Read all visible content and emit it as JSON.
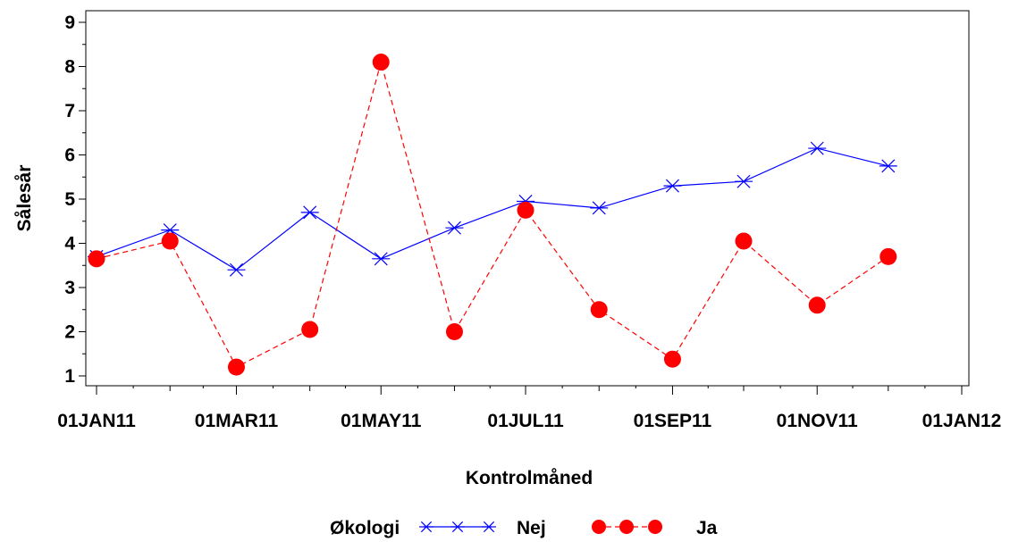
{
  "chart_data": {
    "type": "line",
    "xlabel": "Kontrolmåned",
    "ylabel": "Sålesår",
    "x_axis": {
      "type": "date",
      "range": [
        "2011-01-01",
        "2012-01-01"
      ],
      "major_ticks": [
        {
          "date": "2011-01-01",
          "label": "01JAN11"
        },
        {
          "date": "2011-03-01",
          "label": "01MAR11"
        },
        {
          "date": "2011-05-01",
          "label": "01MAY11"
        },
        {
          "date": "2011-07-01",
          "label": "01JUL11"
        },
        {
          "date": "2011-09-01",
          "label": "01SEP11"
        },
        {
          "date": "2011-11-01",
          "label": "01NOV11"
        },
        {
          "date": "2012-01-01",
          "label": "01JAN12"
        }
      ],
      "minor_ticks": [
        "2011-02-01",
        "2011-04-01",
        "2011-06-01",
        "2011-08-01",
        "2011-10-01",
        "2011-12-01"
      ]
    },
    "y_axis": {
      "range": [
        1,
        9
      ],
      "ticks": [
        1,
        2,
        3,
        4,
        5,
        6,
        7,
        8,
        9
      ]
    },
    "x": [
      "2011-01-01",
      "2011-02-01",
      "2011-03-01",
      "2011-04-01",
      "2011-05-01",
      "2011-06-01",
      "2011-07-01",
      "2011-08-01",
      "2011-09-01",
      "2011-10-01",
      "2011-11-01",
      "2011-12-01"
    ],
    "series": [
      {
        "name": "Nej",
        "color": "#0000ff",
        "marker": "asterisk",
        "line_style": "solid",
        "values": [
          3.7,
          4.3,
          3.4,
          4.7,
          3.65,
          4.35,
          4.95,
          4.8,
          5.3,
          5.4,
          6.15,
          5.75
        ]
      },
      {
        "name": "Ja",
        "color": "#ff0000",
        "marker": "circle",
        "line_style": "dashed",
        "values": [
          3.65,
          4.05,
          1.2,
          2.05,
          8.1,
          2.0,
          4.75,
          2.5,
          1.38,
          4.05,
          2.6,
          3.7
        ]
      }
    ],
    "legend": {
      "title": "Økologi",
      "placement": "bottom"
    },
    "grid": false
  }
}
